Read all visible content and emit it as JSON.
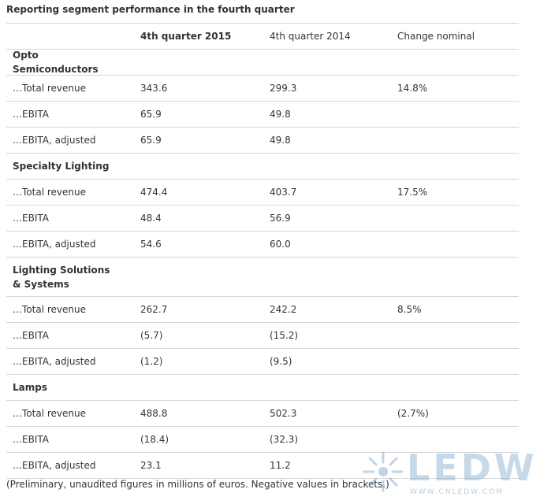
{
  "caption": "Reporting segment performance in the fourth quarter",
  "header": [
    "",
    "4th quarter 2015",
    "4th quarter 2014",
    "Change nominal"
  ],
  "rows": [
    {
      "label": "Opto Semiconductors",
      "v1": "",
      "v2": "",
      "v3": ""
    },
    {
      "label": "…Total revenue",
      "v1": "343.6",
      "v2": "299.3",
      "v3": "14.8%"
    },
    {
      "label": "…EBITA",
      "v1": "65.9",
      "v2": "49.8",
      "v3": ""
    },
    {
      "label": "…EBITA, adjusted",
      "v1": "65.9",
      "v2": "49.8",
      "v3": ""
    },
    {
      "label": "Specialty Lighting",
      "v1": "",
      "v2": "",
      "v3": ""
    },
    {
      "label": "…Total revenue",
      "v1": "474.4",
      "v2": "403.7",
      "v3": "17.5%"
    },
    {
      "label": "…EBITA",
      "v1": "48.4",
      "v2": "56.9",
      "v3": ""
    },
    {
      "label": "…EBITA, adjusted",
      "v1": "54.6",
      "v2": "60.0",
      "v3": ""
    },
    {
      "label": "Lighting Solutions & Systems",
      "v1": "",
      "v2": "",
      "v3": ""
    },
    {
      "label": "…Total revenue",
      "v1": "262.7",
      "v2": "242.2",
      "v3": "8.5%"
    },
    {
      "label": "…EBITA",
      "v1": "(5.7)",
      "v2": "(15.2)",
      "v3": ""
    },
    {
      "label": "…EBITA, adjusted",
      "v1": "(1.2)",
      "v2": "(9.5)",
      "v3": ""
    },
    {
      "label": "Lamps",
      "v1": "",
      "v2": "",
      "v3": ""
    },
    {
      "label": "…Total revenue",
      "v1": "488.8",
      "v2": "502.3",
      "v3": "(2.7%)"
    },
    {
      "label": "…EBITA",
      "v1": "(18.4)",
      "v2": "(32.3)",
      "v3": ""
    },
    {
      "label": "…EBITA, adjusted",
      "v1": "23.1",
      "v2": "11.2",
      "v3": ""
    }
  ],
  "footnote": "(Preliminary, unaudited figures in millions of euros. Negative values in brackets.)",
  "watermark": {
    "text": "LEDW",
    "url": "WWW.CNLEDW.COM"
  }
}
